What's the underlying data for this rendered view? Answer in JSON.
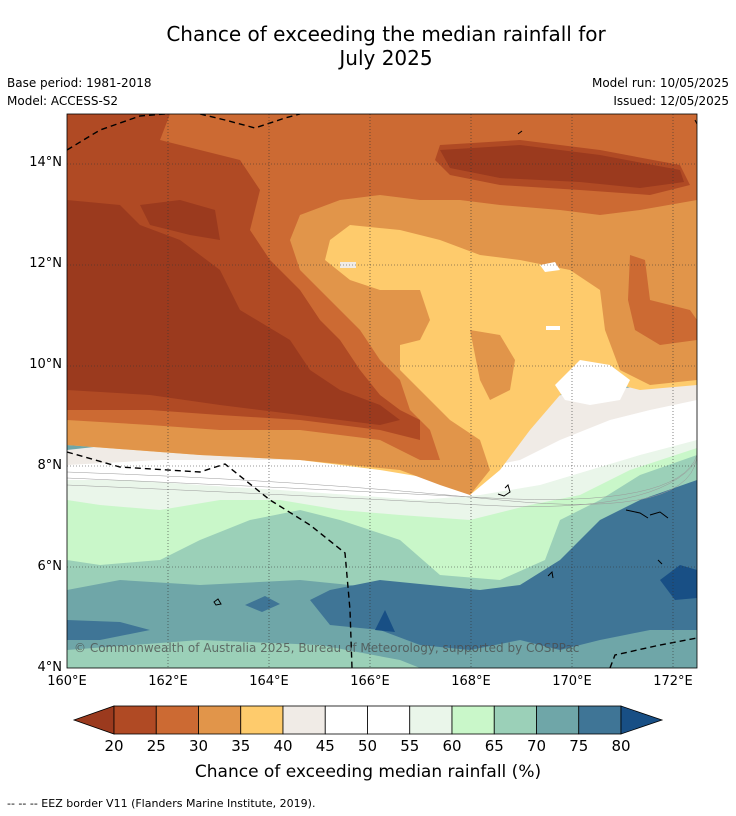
{
  "title_line1": "Chance of exceeding the median rainfall for",
  "title_line2": "July 2025",
  "base_period": "Base period: 1981-2018",
  "model": "Model: ACCESS-S2",
  "model_run": "Model run: 10/05/2025",
  "issued": "Issued: 12/05/2025",
  "lat_labels": [
    "14°N",
    "12°N",
    "10°N",
    "8°N",
    "6°N",
    "4°N"
  ],
  "lon_labels": [
    "160°E",
    "162°E",
    "164°E",
    "166°E",
    "168°E",
    "170°E",
    "172°E"
  ],
  "credit": "© Commonwealth of Australia 2025, Bureau of Meteorology, supported by COSPPac",
  "colorbar": {
    "ticks": [
      "20",
      "25",
      "30",
      "35",
      "40",
      "45",
      "50",
      "55",
      "60",
      "65",
      "70",
      "75",
      "80"
    ],
    "title": "Chance of exceeding median rainfall (%)",
    "colors": [
      "#9b3a1e",
      "#b04a24",
      "#cc6a33",
      "#e1954a",
      "#fecb6c",
      "#f0ebe6",
      "#ffffff",
      "#ffffff",
      "#eaf6ea",
      "#c9f7c9",
      "#9bd0b8",
      "#6fa6a8",
      "#3f7596",
      "#184f85"
    ]
  },
  "footnote": "--  --  -- EEZ border V11 (Flanders Marine Institute, 2019)."
}
